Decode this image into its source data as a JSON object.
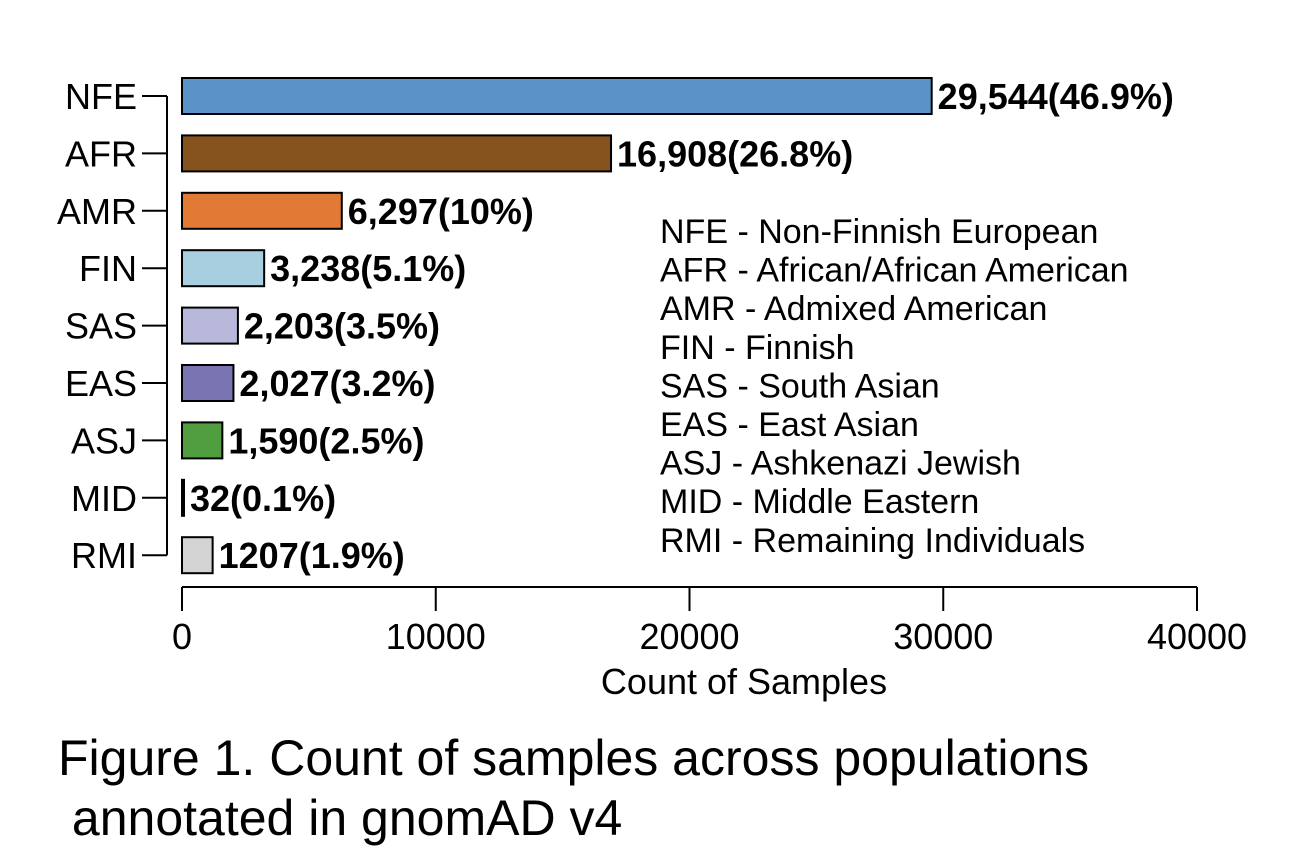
{
  "chart_data": {
    "type": "bar",
    "orientation": "horizontal",
    "categories": [
      "NFE",
      "AFR",
      "AMR",
      "FIN",
      "SAS",
      "EAS",
      "ASJ",
      "MID",
      "RMI"
    ],
    "values": [
      29544,
      16908,
      6297,
      3238,
      2203,
      2027,
      1590,
      32,
      1207
    ],
    "value_labels": [
      "29,544(46.9%)",
      "16,908(26.8%)",
      "6,297(10%)",
      "3,238(5.1%)",
      "2,203(3.5%)",
      "2,027(3.2%)",
      "1,590(2.5%)",
      "32(0.1%)",
      "1207(1.9%)"
    ],
    "colors": [
      "#5a93c8",
      "#86531f",
      "#e07a35",
      "#a8cfe0",
      "#b8b8db",
      "#7b74b3",
      "#4f9d3f",
      "#2e7d32",
      "#d4d4d4"
    ],
    "xlabel": "Count of Samples",
    "xlim": [
      0,
      40000
    ],
    "xticks": [
      0,
      10000,
      20000,
      30000,
      40000
    ],
    "xtick_labels": [
      "0",
      "10000",
      "20000",
      "30000",
      "40000"
    ],
    "grid": false,
    "legend_placement": "right",
    "legend": [
      "NFE - Non-Finnish European",
      "AFR - African/African American",
      "AMR - Admixed American",
      "FIN - Finnish",
      "SAS - South Asian",
      "EAS - East Asian",
      "ASJ - Ashkenazi Jewish",
      "MID - Middle Eastern",
      "RMI - Remaining Individuals"
    ]
  },
  "caption": "Figure 1. Count of samples across populations\n annotated in gnomAD v4"
}
